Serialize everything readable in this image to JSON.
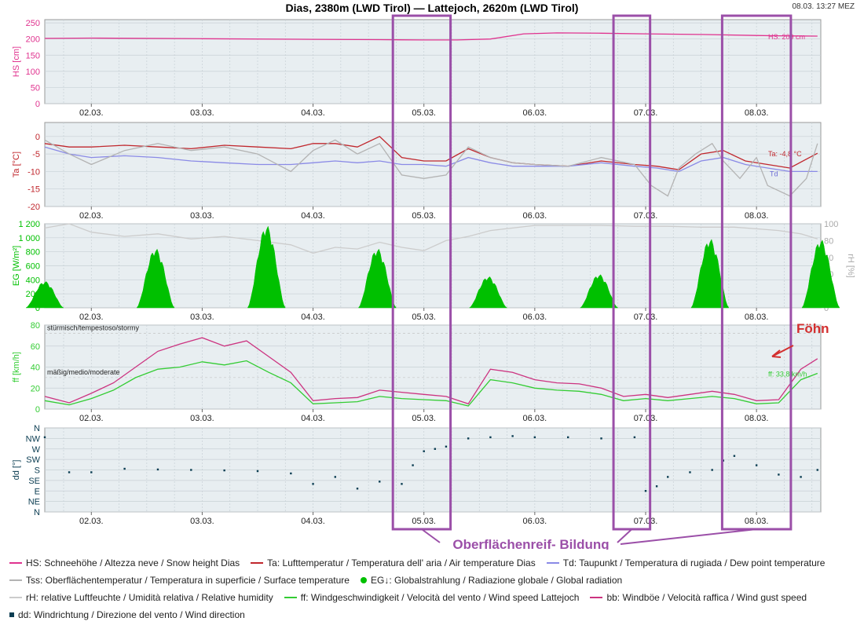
{
  "header": {
    "title": "Dias, 2380m (LWD Tirol) — Lattejoch, 2620m (LWD Tirol)",
    "timestamp": "08.03. 13:27 MEZ"
  },
  "annotations": {
    "foehn": "Föhn",
    "hoar": "Oberflächenreif- Bildung"
  },
  "legend": [
    [
      {
        "key": "hs",
        "color": "#e0338f",
        "type": "line",
        "label": "HS: Schneehöhe / Altezza neve / Snow height  Dias"
      },
      {
        "key": "ta",
        "color": "#c0272d",
        "type": "line",
        "label": "Ta: Lufttemperatur / Temperatura dell' aria / Air temperature  Dias"
      },
      {
        "key": "td",
        "color": "#8a8ae6",
        "type": "line",
        "label": "Td: Taupunkt / Temperatura di rugiada / Dew point temperature"
      }
    ],
    [
      {
        "key": "tss",
        "color": "#b3b3b3",
        "type": "line",
        "label": "Tss: Oberflächentemperatur / Temperatura in superficie / Surface temperature"
      },
      {
        "key": "eg",
        "color": "#00c000",
        "type": "dot",
        "label": "EG↓: Globalstrahlung / Radiazione globale / Global radiation"
      }
    ],
    [
      {
        "key": "rh",
        "color": "#cccccc",
        "type": "line",
        "label": "rH: relative Luftfeuchte / Umidità relativa / Relative humidity"
      },
      {
        "key": "ff",
        "color": "#33cc33",
        "type": "line",
        "label": "ff: Windgeschwindigkeit / Velocità del vento / Wind speed  Lattejoch"
      },
      {
        "key": "bb",
        "color": "#cc3380",
        "type": "line",
        "label": "bb: Windböe / Velocità raffica / Wind gust speed"
      }
    ],
    [
      {
        "key": "dd",
        "color": "#0b3d52",
        "type": "square",
        "label": "dd: Windrichtung / Direzione del vento / Wind direction"
      }
    ]
  ],
  "chart_data": {
    "type": "line",
    "title": "Dias, 2380m (LWD Tirol) — Lattejoch, 2620m (LWD Tirol)",
    "x_ticks": [
      "02.03.",
      "03.03.",
      "04.03.",
      "05.03.",
      "06.03.",
      "07.03.",
      "08.03."
    ],
    "x_range_days": [
      1.58,
      8.58
    ],
    "highlight_ranges_days": [
      [
        4.72,
        5.24
      ],
      [
        6.71,
        7.04
      ],
      [
        7.69,
        8.31
      ]
    ],
    "panels": [
      {
        "id": "hs",
        "ylabel": "HS [cm]",
        "ylim": [
          0,
          260
        ],
        "yticks": [
          "0",
          "50",
          "100",
          "150",
          "200",
          "250"
        ],
        "ytick_values": [
          0,
          50,
          100,
          150,
          200,
          250
        ],
        "label_color": "#e0338f",
        "end_label": "HS: 209 cm",
        "series": [
          {
            "name": "HS",
            "color": "#e0338f",
            "x": [
              1.58,
              2.0,
              3.0,
              4.0,
              4.6,
              5.0,
              5.3,
              5.6,
              5.9,
              6.2,
              6.6,
              7.0,
              7.5,
              8.0,
              8.2,
              8.55
            ],
            "y": [
              202,
              203,
              201,
              199,
              198,
              197,
              197,
              200,
              216,
              219,
              218,
              216,
              214,
              211,
              210,
              209
            ]
          }
        ]
      },
      {
        "id": "ta",
        "ylabel": "Ta [°C]",
        "ylim": [
          -20,
          4
        ],
        "yticks": [
          "-20",
          "-15",
          "-10",
          "-5",
          "0"
        ],
        "ytick_values": [
          -20,
          -15,
          -10,
          -5,
          0
        ],
        "label_color": "#c0272d",
        "end_labels": [
          "Ta: -4,8 °C",
          "Td"
        ],
        "series": [
          {
            "name": "Ta",
            "color": "#c0272d",
            "x": [
              1.58,
              1.8,
              2.0,
              2.3,
              2.6,
              2.9,
              3.2,
              3.5,
              3.8,
              4.0,
              4.2,
              4.4,
              4.6,
              4.8,
              5.0,
              5.2,
              5.4,
              5.6,
              5.8,
              6.0,
              6.3,
              6.6,
              6.9,
              7.1,
              7.3,
              7.5,
              7.7,
              7.9,
              8.1,
              8.3,
              8.55
            ],
            "y": [
              -2,
              -3,
              -3,
              -2.5,
              -3,
              -3.5,
              -2.5,
              -3,
              -3.5,
              -2,
              -2,
              -3,
              0,
              -6,
              -7,
              -7,
              -3.5,
              -6,
              -7.5,
              -8,
              -8.5,
              -7,
              -8,
              -8.5,
              -9.5,
              -5,
              -4,
              -7,
              -8,
              -9,
              -4.8
            ]
          },
          {
            "name": "Td",
            "color": "#8a8ae6",
            "x": [
              1.58,
              1.8,
              2.0,
              2.3,
              2.6,
              2.9,
              3.2,
              3.5,
              3.8,
              4.0,
              4.2,
              4.4,
              4.6,
              4.8,
              5.0,
              5.2,
              5.4,
              5.6,
              5.8,
              6.0,
              6.3,
              6.6,
              6.9,
              7.1,
              7.3,
              7.5,
              7.7,
              7.9,
              8.1,
              8.3,
              8.55
            ],
            "y": [
              -3,
              -5,
              -6,
              -5.5,
              -6,
              -7,
              -7.5,
              -8,
              -8,
              -7.5,
              -7,
              -7.5,
              -7,
              -8,
              -8,
              -8.5,
              -6,
              -7.5,
              -8.5,
              -8.5,
              -8.5,
              -7.5,
              -8.5,
              -9,
              -10,
              -7,
              -6,
              -8,
              -9,
              -10,
              -10
            ]
          },
          {
            "name": "Tss",
            "color": "#b3b3b3",
            "x": [
              1.58,
              1.8,
              2.0,
              2.3,
              2.6,
              2.9,
              3.2,
              3.5,
              3.8,
              4.0,
              4.2,
              4.4,
              4.6,
              4.8,
              5.0,
              5.2,
              5.4,
              5.6,
              5.8,
              6.0,
              6.3,
              6.6,
              6.9,
              7.05,
              7.2,
              7.3,
              7.45,
              7.6,
              7.7,
              7.85,
              8.0,
              8.1,
              8.3,
              8.45,
              8.55
            ],
            "y": [
              -1,
              -5,
              -8,
              -4,
              -2,
              -4,
              -3,
              -5,
              -10,
              -4,
              -1,
              -5,
              -2,
              -11,
              -12,
              -11,
              -3,
              -6,
              -7.5,
              -8,
              -8.5,
              -6,
              -8,
              -14,
              -17,
              -9,
              -5,
              -2,
              -7,
              -12,
              -6,
              -14,
              -17,
              -12,
              -2
            ]
          }
        ]
      },
      {
        "id": "eg",
        "ylabel": "EG [W/m²]",
        "ylabel_right": "rH [%]",
        "ylim": [
          0,
          1200
        ],
        "ylim_right": [
          0,
          100
        ],
        "yticks": [
          "0",
          "200",
          "400",
          "600",
          "800",
          "1 000",
          "1 200"
        ],
        "ytick_values": [
          0,
          200,
          400,
          600,
          800,
          1000,
          1200
        ],
        "yticks_right": [
          "0",
          "20",
          "40",
          "60",
          "80",
          "100"
        ],
        "ytick_values_right": [
          0,
          20,
          40,
          60,
          80,
          100
        ],
        "label_color": "#00c000",
        "series": [
          {
            "name": "rH",
            "color": "#cccccc",
            "axis": "right",
            "x": [
              1.58,
              1.8,
              2.0,
              2.3,
              2.6,
              2.9,
              3.2,
              3.5,
              3.8,
              4.0,
              4.2,
              4.4,
              4.6,
              4.8,
              5.0,
              5.2,
              5.4,
              5.6,
              5.8,
              6.0,
              6.3,
              6.6,
              6.9,
              7.2,
              7.5,
              7.8,
              8.0,
              8.2,
              8.4,
              8.55
            ],
            "y": [
              95,
              100,
              90,
              85,
              88,
              82,
              85,
              80,
              75,
              65,
              72,
              70,
              78,
              72,
              68,
              80,
              85,
              92,
              95,
              98,
              98,
              98,
              97,
              97,
              96,
              96,
              94,
              92,
              88,
              82
            ]
          },
          {
            "name": "EG",
            "color": "#00c000",
            "type": "area",
            "days": [
              1.58,
              2.58,
              3.58,
              4.58,
              5.58,
              6.58,
              7.58,
              8.58
            ],
            "peaks": [
              380,
              850,
              1180,
              850,
              450,
              480,
              990,
              980
            ]
          }
        ]
      },
      {
        "id": "ff",
        "ylabel": "ff [km/h]",
        "ylim": [
          0,
          80
        ],
        "yticks": [
          "0",
          "20",
          "40",
          "60",
          "80"
        ],
        "ytick_values": [
          0,
          20,
          40,
          60,
          80
        ],
        "label_color": "#33cc33",
        "zone_labels": [
          "stürmisch/tempestoso/stormy",
          "mäßig/medio/moderate"
        ],
        "zone_values": [
          75,
          33
        ],
        "end_label": "ff: 33,8 km/h",
        "series": [
          {
            "name": "ff",
            "color": "#33cc33",
            "x": [
              1.58,
              1.8,
              2.0,
              2.2,
              2.4,
              2.6,
              2.8,
              3.0,
              3.2,
              3.4,
              3.6,
              3.8,
              4.0,
              4.2,
              4.4,
              4.6,
              4.8,
              5.0,
              5.2,
              5.4,
              5.6,
              5.8,
              6.0,
              6.2,
              6.4,
              6.6,
              6.8,
              7.0,
              7.2,
              7.4,
              7.6,
              7.8,
              8.0,
              8.2,
              8.4,
              8.55
            ],
            "y": [
              8,
              4,
              10,
              18,
              30,
              38,
              40,
              45,
              42,
              46,
              35,
              25,
              5,
              6,
              7,
              12,
              10,
              9,
              8,
              3,
              28,
              25,
              20,
              18,
              17,
              14,
              8,
              10,
              8,
              10,
              12,
              10,
              5,
              6,
              28,
              34
            ]
          },
          {
            "name": "bb",
            "color": "#cc3380",
            "x": [
              1.58,
              1.8,
              2.0,
              2.2,
              2.4,
              2.6,
              2.8,
              3.0,
              3.2,
              3.4,
              3.6,
              3.8,
              4.0,
              4.2,
              4.4,
              4.6,
              4.8,
              5.0,
              5.2,
              5.4,
              5.6,
              5.8,
              6.0,
              6.2,
              6.4,
              6.6,
              6.8,
              7.0,
              7.2,
              7.4,
              7.6,
              7.8,
              8.0,
              8.2,
              8.4,
              8.55
            ],
            "y": [
              12,
              6,
              15,
              25,
              40,
              55,
              62,
              68,
              60,
              65,
              50,
              35,
              8,
              10,
              11,
              18,
              16,
              14,
              12,
              5,
              38,
              35,
              28,
              25,
              24,
              20,
              12,
              14,
              11,
              14,
              17,
              14,
              8,
              9,
              38,
              48
            ]
          }
        ]
      },
      {
        "id": "dd",
        "ylabel": "dd [°]",
        "ylim": [
          0,
          360
        ],
        "yticks": [
          "N",
          "NE",
          "E",
          "SE",
          "S",
          "SW",
          "W",
          "NW",
          "N"
        ],
        "ytick_values": [
          0,
          45,
          90,
          135,
          180,
          225,
          270,
          315,
          360
        ],
        "label_color": "#0b3d52",
        "series": [
          {
            "name": "dd",
            "color": "#0b3d52",
            "type": "scatter",
            "x": [
              1.58,
              1.8,
              2.0,
              2.3,
              2.6,
              2.9,
              3.2,
              3.5,
              3.8,
              4.0,
              4.2,
              4.4,
              4.6,
              4.8,
              4.9,
              5.0,
              5.1,
              5.2,
              5.4,
              5.6,
              5.8,
              6.0,
              6.3,
              6.6,
              6.9,
              7.0,
              7.1,
              7.2,
              7.4,
              7.6,
              7.7,
              7.8,
              8.0,
              8.2,
              8.4,
              8.55
            ],
            "y": [
              320,
              170,
              170,
              185,
              182,
              180,
              178,
              175,
              165,
              120,
              150,
              100,
              130,
              120,
              200,
              260,
              270,
              280,
              315,
              320,
              325,
              320,
              320,
              315,
              320,
              90,
              110,
              150,
              170,
              180,
              220,
              240,
              200,
              160,
              150,
              180
            ]
          }
        ]
      }
    ]
  }
}
